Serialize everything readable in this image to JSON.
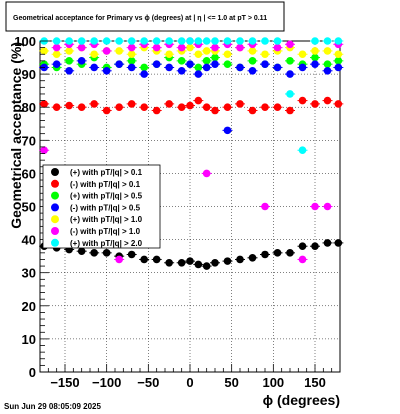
{
  "chart_data": {
    "type": "scatter",
    "title": "Geometrical acceptance for Primary vs ϕ (degrees) at | η | <= 1.0 at pT > 0.11",
    "xlabel": "ϕ (degrees)",
    "ylabel": "Geometrical acceptance (%)",
    "xlim": [
      -180,
      180
    ],
    "ylim": [
      0,
      100
    ],
    "x_ticks": [
      -150,
      -100,
      -50,
      0,
      50,
      100,
      150
    ],
    "x_tick_labels": [
      "−150",
      "−100",
      "−50",
      "0",
      "50",
      "100",
      "150"
    ],
    "y_ticks": [
      0,
      10,
      20,
      30,
      40,
      50,
      60,
      70,
      80,
      90,
      100
    ],
    "y_tick_labels": [
      "0",
      "10",
      "20",
      "30",
      "40",
      "50",
      "60",
      "70",
      "80",
      "90",
      "100"
    ],
    "grid": true,
    "legend_position": "center-left",
    "series": [
      {
        "name": "(+) with pT/|q| > 0.1",
        "color": "#000000",
        "marker": "circle",
        "x": [
          -175,
          -160,
          -145,
          -130,
          -115,
          -100,
          -85,
          -70,
          -55,
          -40,
          -25,
          -10,
          0,
          10,
          20,
          30,
          45,
          60,
          75,
          90,
          105,
          120,
          135,
          150,
          165,
          178
        ],
        "y": [
          38,
          37.5,
          37,
          36.5,
          36,
          36,
          35,
          35.5,
          34,
          34,
          33,
          33,
          33.5,
          32.5,
          32,
          33,
          33.5,
          34,
          34.5,
          35.5,
          36,
          36,
          38,
          38,
          39,
          39
        ]
      },
      {
        "name": "(-) with pT/|q| > 0.1",
        "color": "#ff0000",
        "marker": "circle",
        "x": [
          -175,
          -160,
          -145,
          -130,
          -115,
          -100,
          -85,
          -70,
          -55,
          -40,
          -25,
          -10,
          0,
          10,
          20,
          30,
          45,
          60,
          75,
          90,
          105,
          120,
          135,
          150,
          165,
          178
        ],
        "y": [
          81,
          80,
          80.5,
          80,
          81,
          79,
          80,
          81,
          80,
          79,
          81,
          80,
          80.5,
          82,
          80,
          79,
          80,
          81,
          79,
          80,
          80,
          79,
          82,
          81,
          82,
          81
        ]
      },
      {
        "name": "(+) with pT/|q| > 0.5",
        "color": "#00ff00",
        "marker": "circle",
        "x": [
          -175,
          -160,
          -145,
          -130,
          -115,
          -100,
          -85,
          -70,
          -55,
          -40,
          -25,
          -10,
          0,
          10,
          20,
          30,
          45,
          60,
          75,
          90,
          105,
          120,
          135,
          150,
          165,
          178
        ],
        "y": [
          93,
          92,
          94,
          93,
          95,
          92,
          93,
          94,
          92,
          93,
          95,
          94,
          93,
          92,
          94,
          95,
          93,
          92,
          94,
          93,
          92,
          94,
          93,
          95,
          93,
          94
        ]
      },
      {
        "name": "(-) with pT/|q| > 0.5",
        "color": "#0000ff",
        "marker": "circle",
        "x": [
          -175,
          -160,
          -145,
          -130,
          -115,
          -100,
          -85,
          -70,
          -55,
          -40,
          -25,
          -10,
          0,
          10,
          20,
          30,
          45,
          60,
          75,
          90,
          105,
          120,
          135,
          150,
          165,
          178
        ],
        "y": [
          92,
          93,
          91,
          94,
          92,
          91,
          93,
          92,
          90,
          93,
          92,
          91,
          93,
          90,
          92,
          93,
          73,
          92,
          91,
          93,
          92,
          90,
          92,
          93,
          91,
          92
        ]
      },
      {
        "name": "(+) with pT/|q| > 1.0",
        "color": "#ffff00",
        "marker": "circle",
        "x": [
          -175,
          -160,
          -145,
          -130,
          -115,
          -100,
          -85,
          -70,
          -55,
          -40,
          -25,
          -10,
          0,
          10,
          20,
          30,
          45,
          60,
          75,
          90,
          105,
          120,
          135,
          150,
          165,
          178
        ],
        "y": [
          97,
          96,
          97,
          98,
          96,
          97,
          97,
          96,
          98,
          97,
          96,
          97,
          98,
          96,
          97,
          97,
          96,
          98,
          97,
          96,
          97,
          98,
          96,
          97,
          97,
          96
        ]
      },
      {
        "name": "(-) with pT/|q| > 1.0",
        "color": "#ff00ff",
        "marker": "circle",
        "x": [
          -175,
          -160,
          -145,
          -130,
          -115,
          -100,
          -85,
          -70,
          -55,
          -40,
          -25,
          -10,
          0,
          10,
          20,
          30,
          45,
          60,
          75,
          90,
          105,
          120,
          135,
          150,
          165,
          178
        ],
        "y": [
          67,
          98,
          99,
          98,
          99,
          97,
          34,
          98,
          99,
          98,
          99,
          98,
          100,
          99,
          60,
          98,
          99,
          98,
          99,
          50,
          98,
          99,
          34,
          50,
          50,
          99
        ]
      },
      {
        "name": "(+) with pT/|q| > 2.0",
        "color": "#00ffff",
        "marker": "circle",
        "x": [
          -175,
          -160,
          -145,
          -130,
          -115,
          -100,
          -85,
          -70,
          -55,
          -40,
          -25,
          -10,
          0,
          10,
          20,
          30,
          45,
          60,
          75,
          90,
          105,
          120,
          135,
          150,
          165,
          178
        ],
        "y": [
          100,
          100,
          100,
          100,
          100,
          100,
          100,
          100,
          100,
          100,
          100,
          100,
          100,
          100,
          100,
          100,
          100,
          100,
          100,
          100,
          100,
          84,
          67,
          100,
          100,
          100
        ]
      }
    ]
  },
  "footer": {
    "timestamp": "Sun Jun 29 08:05:09 2025"
  }
}
